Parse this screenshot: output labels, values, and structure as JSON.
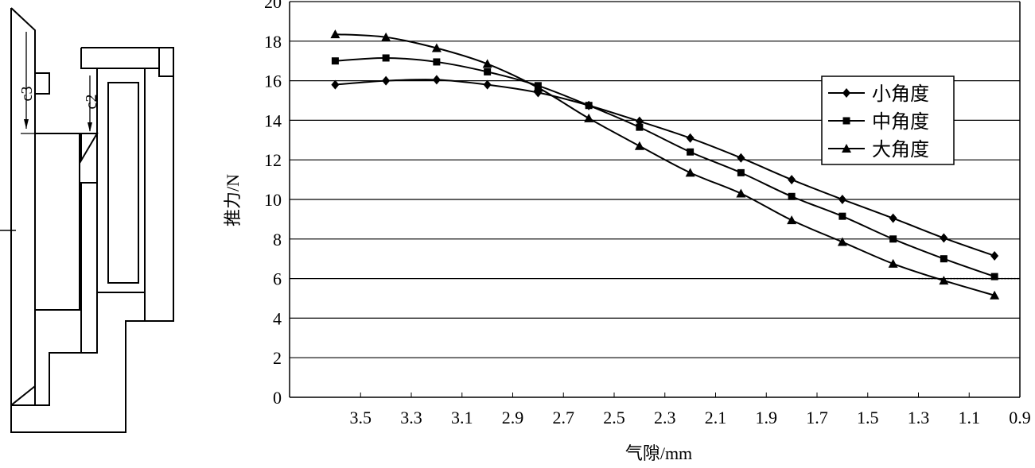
{
  "diagram": {
    "labels": {
      "c3": "c3",
      "c2": "c2"
    }
  },
  "chart_data": {
    "type": "line",
    "xlabel": "气隙/mm",
    "ylabel": "推力/N",
    "x_reversed": true,
    "xlim": [
      3.78,
      0.9
    ],
    "ylim": [
      0,
      20
    ],
    "x_ticks": [
      "3.5",
      "3.3",
      "3.1",
      "2.9",
      "2.7",
      "2.5",
      "2.3",
      "2.1",
      "1.9",
      "1.7",
      "1.5",
      "1.3",
      "1.1",
      "0.9"
    ],
    "y_ticks": [
      "0",
      "2",
      "4",
      "6",
      "8",
      "10",
      "12",
      "14",
      "16",
      "18",
      "20"
    ],
    "grid": "horizontal",
    "legend_position": "upper-right",
    "reference_line": {
      "y": 6,
      "x_from": 1.3,
      "x_to": 0.9,
      "style": "dotted"
    },
    "x": [
      3.6,
      3.4,
      3.2,
      3.0,
      2.8,
      2.6,
      2.4,
      2.2,
      2.0,
      1.8,
      1.6,
      1.4,
      1.2,
      1.0
    ],
    "series": [
      {
        "name": "小角度",
        "marker": "diamond",
        "values": [
          15.8,
          16.0,
          16.05,
          15.8,
          15.4,
          14.75,
          13.95,
          13.1,
          12.1,
          11.0,
          10.0,
          9.05,
          8.05,
          7.15
        ]
      },
      {
        "name": "中角度",
        "marker": "square",
        "values": [
          17.0,
          17.15,
          16.95,
          16.45,
          15.75,
          14.75,
          13.65,
          12.4,
          11.35,
          10.15,
          9.15,
          8.0,
          7.0,
          6.1
        ]
      },
      {
        "name": "大角度",
        "marker": "triangle",
        "values": [
          18.35,
          18.2,
          17.65,
          16.85,
          15.65,
          14.1,
          12.7,
          11.35,
          10.3,
          8.95,
          7.85,
          6.75,
          5.9,
          5.15
        ]
      }
    ]
  }
}
